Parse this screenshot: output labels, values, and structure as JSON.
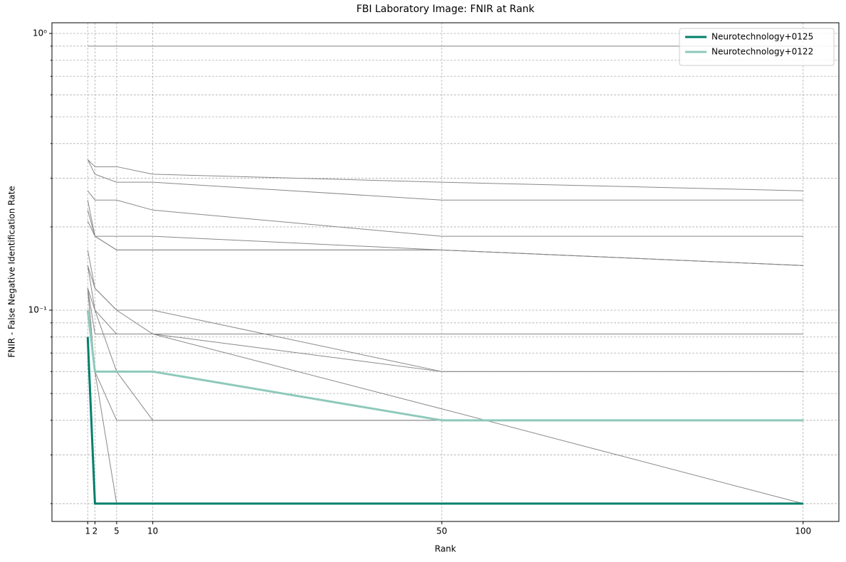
{
  "chart_data": {
    "type": "line",
    "title": "FBI Laboratory Image: FNIR at Rank",
    "xlabel": "Rank",
    "ylabel": "FNIR - False Negative Identification Rate",
    "x": [
      1,
      2,
      5,
      10,
      50,
      100
    ],
    "xlim": [
      -3.95,
      104.95
    ],
    "xticks": [
      1,
      2,
      5,
      10,
      50,
      100
    ],
    "ylim": [
      0.01724,
      1.093
    ],
    "yscale": "log",
    "yticks": [
      {
        "value": 0.1,
        "label": "10⁻¹"
      },
      {
        "value": 1,
        "label": "10⁰"
      }
    ],
    "yminorticks": [
      0.02,
      0.03,
      0.04,
      0.05,
      0.06,
      0.07,
      0.08,
      0.09,
      0.2,
      0.3,
      0.4,
      0.5,
      0.6,
      0.7,
      0.8,
      0.9
    ],
    "grid": true,
    "legend": "upper right",
    "series": [
      {
        "color": "#888888",
        "values": [
          0.9,
          0.9,
          0.9,
          0.9,
          0.9,
          0.9
        ]
      },
      {
        "color": "#888888",
        "values": [
          0.35,
          0.33,
          0.33,
          0.31,
          0.29,
          0.27
        ]
      },
      {
        "color": "#888888",
        "values": [
          0.35,
          0.31,
          0.29,
          0.29,
          0.25,
          0.25
        ]
      },
      {
        "color": "#888888",
        "values": [
          0.27,
          0.25,
          0.25,
          0.23,
          0.185,
          0.185
        ]
      },
      {
        "color": "#888888",
        "values": [
          0.25,
          0.185,
          0.185,
          0.185,
          0.165,
          0.145
        ]
      },
      {
        "color": "#888888",
        "values": [
          0.21,
          0.185,
          0.165,
          0.165,
          0.165,
          0.145
        ]
      },
      {
        "color": "#888888",
        "values": [
          0.23,
          0.185,
          0.165,
          0.165,
          0.165,
          0.145
        ]
      },
      {
        "color": "#888888",
        "values": [
          0.145,
          0.12,
          0.1,
          0.1,
          0.06,
          0.06
        ]
      },
      {
        "color": "#888888",
        "values": [
          0.145,
          0.1,
          0.082,
          0.082,
          0.06,
          0.06
        ]
      },
      {
        "color": "#888888",
        "values": [
          0.12,
          0.082,
          0.082,
          0.082,
          0.082,
          0.082
        ]
      },
      {
        "color": "#888888",
        "values": [
          0.165,
          0.12,
          0.1,
          0.082,
          0.044,
          0.02
        ]
      },
      {
        "color": "#888888",
        "values": [
          0.12,
          0.06,
          0.04,
          0.04,
          0.04,
          0.04
        ]
      },
      {
        "color": "#888888",
        "values": [
          0.12,
          0.06,
          0.02,
          0.02,
          0.02,
          0.02
        ]
      },
      {
        "color": "#888888",
        "values": [
          0.12,
          0.1,
          0.06,
          0.04,
          0.04,
          0.04
        ]
      },
      {
        "name": "Neurotechnology+0125",
        "color": "#007f6b",
        "width": 3,
        "values": [
          0.08,
          0.02,
          0.02,
          0.02,
          0.02,
          0.02
        ]
      },
      {
        "name": "Neurotechnology+0122",
        "color": "#8ec9bb",
        "width": 3,
        "values": [
          0.1,
          0.06,
          0.06,
          0.06,
          0.04,
          0.04
        ]
      }
    ]
  }
}
